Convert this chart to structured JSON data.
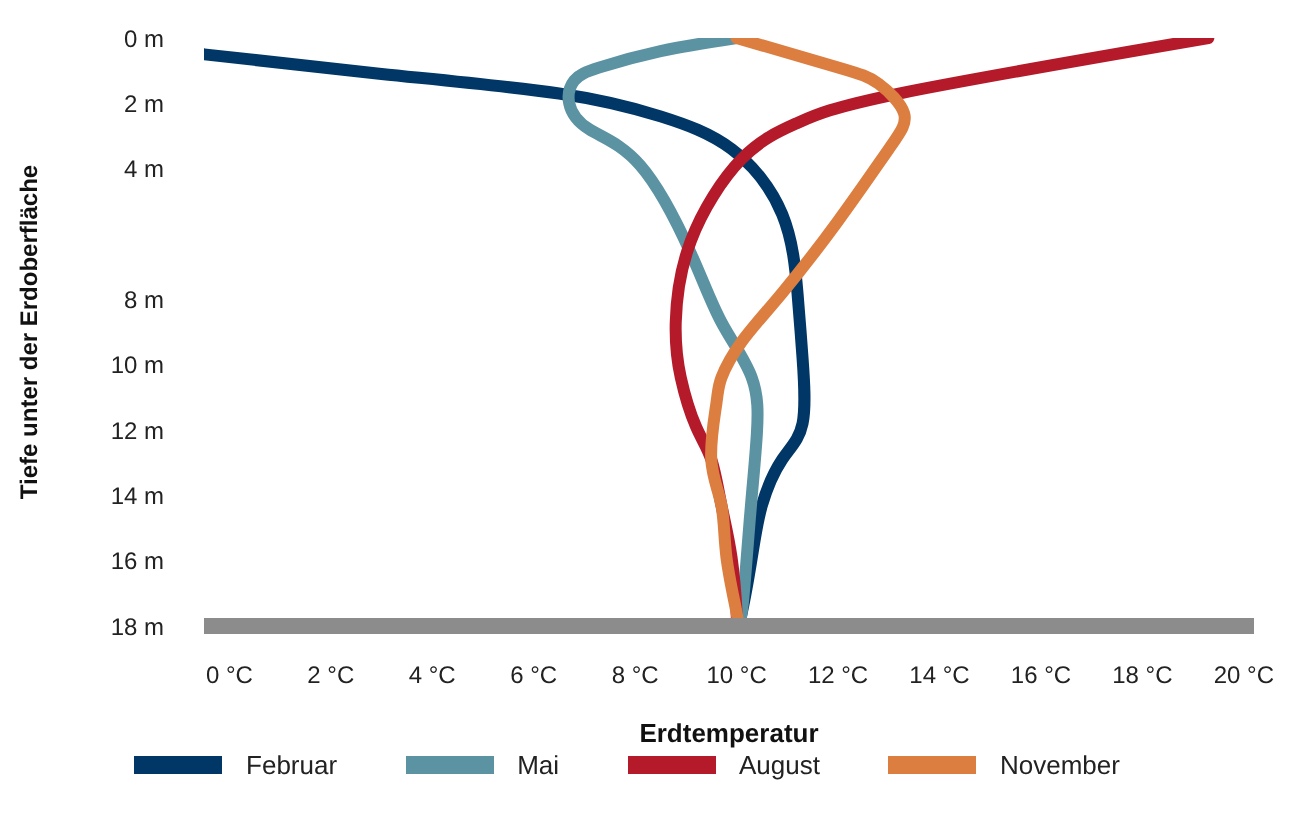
{
  "chart_data": {
    "type": "line",
    "xlabel": "Erdtemperatur",
    "ylabel": "Tiefe unter der Erdoberfläche",
    "xlim": [
      -0.5,
      20.2
    ],
    "xticks": [
      {
        "value": 0,
        "label": "0 °C"
      },
      {
        "value": 2,
        "label": "2 °C"
      },
      {
        "value": 4,
        "label": "4 °C"
      },
      {
        "value": 6,
        "label": "6 °C"
      },
      {
        "value": 8,
        "label": "8 °C"
      },
      {
        "value": 10,
        "label": "10 °C"
      },
      {
        "value": 12,
        "label": "12 °C"
      },
      {
        "value": 14,
        "label": "14 °C"
      },
      {
        "value": 16,
        "label": "16 °C"
      },
      {
        "value": 18,
        "label": "18 °C"
      },
      {
        "value": 20,
        "label": "20 °C"
      }
    ],
    "ylim": [
      18,
      0
    ],
    "yticks": [
      {
        "value": 0,
        "label": "0 m"
      },
      {
        "value": 2,
        "label": "2 m"
      },
      {
        "value": 4,
        "label": "4 m"
      },
      {
        "value": 8,
        "label": "8 m"
      },
      {
        "value": 10,
        "label": "10 m"
      },
      {
        "value": 12,
        "label": "12 m"
      },
      {
        "value": 14,
        "label": "14 m"
      },
      {
        "value": 16,
        "label": "16 m"
      },
      {
        "value": 18,
        "label": "18 m"
      }
    ],
    "grid": false,
    "legend": "bottom",
    "marker": "none",
    "line_style": "solid",
    "series": [
      {
        "name": "Februar",
        "color": "#003767",
        "x": [
          -0.5,
          3.0,
          6.5,
          8.5,
          9.9,
          10.9,
          11.2,
          11.3,
          11.3,
          10.9,
          10.5,
          10.3,
          10.1,
          10.0
        ],
        "values": [
          0.5,
          1.1,
          1.7,
          2.4,
          3.4,
          5.4,
          7.8,
          9.8,
          11.8,
          12.9,
          14.3,
          15.9,
          17.6,
          18
        ]
      },
      {
        "name": "Mai",
        "color": "#5b93a3",
        "x": [
          10.0,
          8.5,
          7.3,
          6.8,
          6.7,
          7.1,
          8.1,
          9.1,
          9.7,
          10.3,
          10.4,
          10.3,
          10.2,
          10.1,
          10.0
        ],
        "values": [
          0,
          0.4,
          0.9,
          1.3,
          2.0,
          2.8,
          3.9,
          6.6,
          8.7,
          10.4,
          12.1,
          14.0,
          15.9,
          17.6,
          18
        ]
      },
      {
        "name": "August",
        "color": "#b41a2a",
        "x": [
          19.3,
          13.2,
          11.2,
          10.1,
          9.1,
          8.8,
          8.9,
          9.2,
          9.5,
          9.7,
          9.9,
          10.0,
          10.0
        ],
        "values": [
          0,
          1.7,
          2.6,
          3.7,
          6.2,
          8.7,
          10.4,
          11.9,
          12.9,
          14.3,
          15.9,
          17.6,
          18
        ]
      },
      {
        "name": "November",
        "color": "#dc7e40",
        "x": [
          10.0,
          12.0,
          12.8,
          13.3,
          13.0,
          12.0,
          10.9,
          10.1,
          9.7,
          9.6,
          9.5,
          9.7,
          9.8,
          10.0,
          10.0
        ],
        "values": [
          0,
          0.9,
          1.4,
          2.3,
          3.4,
          5.6,
          7.8,
          9.3,
          10.4,
          11.2,
          12.9,
          14.3,
          15.9,
          17.6,
          18
        ]
      }
    ]
  }
}
